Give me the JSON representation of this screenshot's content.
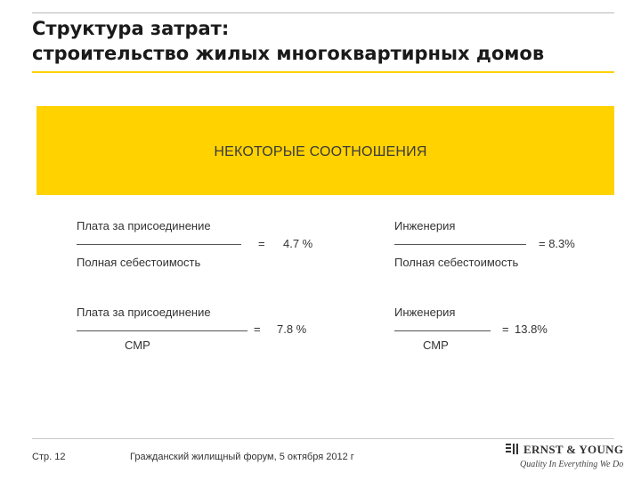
{
  "slide": {
    "title_line1": "Структура затрат:",
    "title_line2": "строительство жилых многоквартирных домов",
    "band_heading": "НЕКОТОРЫЕ СООТНОШЕНИЯ"
  },
  "ratios": [
    {
      "numerator": "Плата за присоединение",
      "equals": "=",
      "value": "4.7 %",
      "denominator": "Полная себестоимость"
    },
    {
      "numerator": "Инженерия",
      "equals": "",
      "value": "= 8.3%",
      "denominator": "Полная себестоимость"
    },
    {
      "numerator": "Плата за присоединение",
      "equals": "=",
      "value": "7.8 %",
      "denominator": "СМР"
    },
    {
      "numerator": "Инженерия",
      "equals": "=",
      "value": "13.8%",
      "denominator": "СМР"
    }
  ],
  "footer": {
    "page": "Стр. 12",
    "event": "Гражданский жилищный форум, 5 октября 2012 г",
    "logo_text": "ERNST & YOUNG",
    "tagline": "Quality In Everything We Do"
  },
  "colors": {
    "accent": "#ffd200",
    "text": "#333333"
  }
}
